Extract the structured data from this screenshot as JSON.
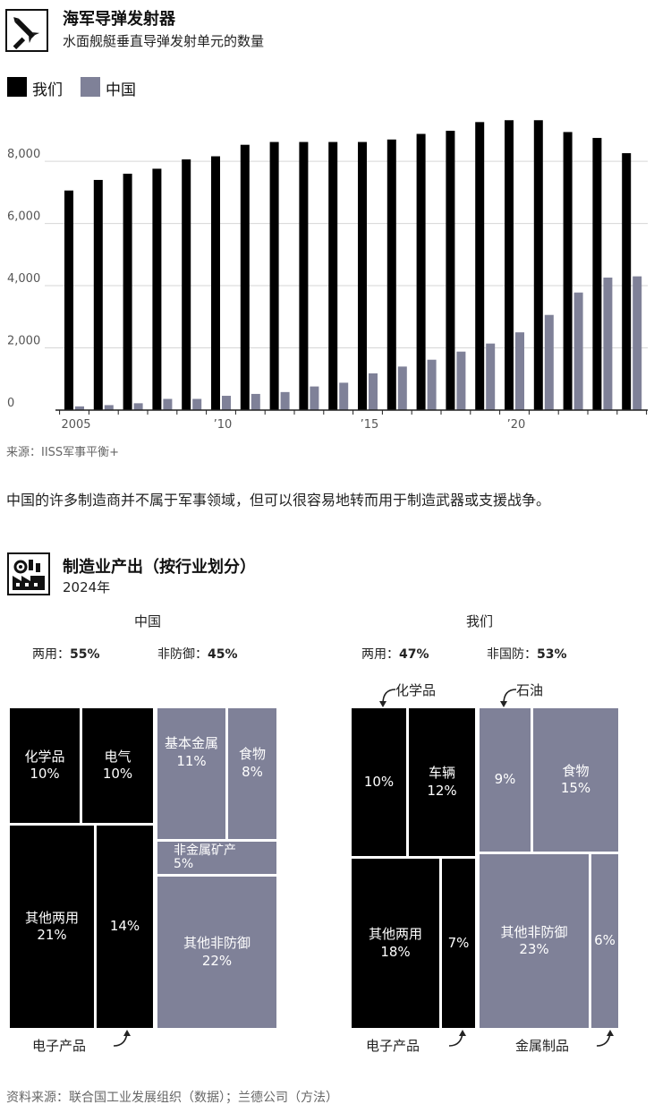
{
  "chart1": {
    "title": "海军导弹发射器",
    "subtitle": "水面舰艇垂直导弹发射单元的数量",
    "icon": "missile-launcher-icon",
    "legend": [
      {
        "label": "我们",
        "color": "#000000"
      },
      {
        "label": "中国",
        "color": "#7f8198"
      }
    ],
    "source": "来源：IISS军事平衡+"
  },
  "chart_data": [
    {
      "type": "bar",
      "title": "海军导弹发射器",
      "subtitle": "水面舰艇垂直导弹发射单元的数量",
      "x": [
        2005,
        2006,
        2007,
        2008,
        2009,
        2010,
        2011,
        2012,
        2013,
        2014,
        2015,
        2016,
        2017,
        2018,
        2019,
        2020,
        2021,
        2022,
        2023,
        2024
      ],
      "x_tick_labels": [
        "2005",
        "’10",
        "’15",
        "’20"
      ],
      "x_tick_values": [
        2005,
        2010,
        2015,
        2020
      ],
      "series": [
        {
          "name": "我们",
          "color": "#000000",
          "values": [
            7060,
            7400,
            7600,
            7760,
            8060,
            8160,
            8530,
            8620,
            8620,
            8620,
            8620,
            8700,
            8880,
            8980,
            9260,
            9320,
            9320,
            8940,
            8750,
            8260
          ]
        },
        {
          "name": "中国",
          "color": "#7f8198",
          "values": [
            120,
            160,
            220,
            360,
            360,
            460,
            520,
            580,
            760,
            880,
            1180,
            1400,
            1620,
            1880,
            2140,
            2500,
            3060,
            3780,
            4260,
            4300
          ]
        }
      ],
      "ylim": [
        0,
        9500
      ],
      "y_ticks": [
        "0",
        "2,000",
        "4,000",
        "6,000",
        "8,000"
      ],
      "y_tick_values": [
        0,
        2000,
        4000,
        6000,
        8000
      ],
      "grid": true,
      "legend": "top-left"
    },
    {
      "type": "treemap",
      "title": "制造业产出（按行业划分）",
      "subtitle": "2024年",
      "groups": [
        {
          "country": "中国",
          "shares": {
            "dual_label": "两用：",
            "dual_value": "55%",
            "nondef_label": "非防御：",
            "nondef_value": "45%"
          },
          "tiles": [
            {
              "label": "化学品",
              "value": 10,
              "kind": "dual"
            },
            {
              "label": "电气",
              "value": 10,
              "kind": "dual"
            },
            {
              "label": "其他两用",
              "value": 21,
              "kind": "dual"
            },
            {
              "label": "电子产品",
              "value": 14,
              "kind": "dual"
            },
            {
              "label": "基本金属",
              "value": 11,
              "kind": "nondef"
            },
            {
              "label": "食物",
              "value": 8,
              "kind": "nondef"
            },
            {
              "label": "非金属矿产",
              "value": 5,
              "kind": "nondef"
            },
            {
              "label": "其他非防御",
              "value": 22,
              "kind": "nondef"
            }
          ]
        },
        {
          "country": "我们",
          "shares": {
            "dual_label": "两用：",
            "dual_value": "47%",
            "nondef_label": "非国防：",
            "nondef_value": "53%"
          },
          "tiles": [
            {
              "label": "化学品",
              "value": 10,
              "kind": "dual"
            },
            {
              "label": "车辆",
              "value": 12,
              "kind": "dual"
            },
            {
              "label": "其他两用",
              "value": 18,
              "kind": "dual"
            },
            {
              "label": "电子产品",
              "value": 7,
              "kind": "dual"
            },
            {
              "label": "石油",
              "value": 9,
              "kind": "nondef"
            },
            {
              "label": "食物",
              "value": 15,
              "kind": "nondef"
            },
            {
              "label": "其他非防御",
              "value": 23,
              "kind": "nondef"
            },
            {
              "label": "金属制品",
              "value": 6,
              "kind": "nondef"
            }
          ]
        }
      ]
    }
  ],
  "body_text": "中国的许多制造商并不属于军事领域，但可以很容易地转而用于制造武器或支援战争。",
  "chart2": {
    "title": "制造业产出（按行业划分）",
    "subtitle": "2024年",
    "icon": "factory-gear-icon",
    "cn": {
      "header": "中国",
      "dual_label": "两用：",
      "dual_value": "55%",
      "nondef_label": "非防御：",
      "nondef_value": "45%",
      "t1_name": "化学品",
      "t1_pct": "10%",
      "t2_name": "电气",
      "t2_pct": "10%",
      "t3_name": "其他两用",
      "t3_pct": "21%",
      "t4_pct": "14%",
      "t5_name": "基本金属",
      "t5_pct": "11%",
      "t6_name": "食物",
      "t6_pct": "8%",
      "t7_name": "非金属矿产",
      "t7_pct": "5%",
      "t8_name": "其他非防御",
      "t8_pct": "22%",
      "callout_electronics": "电子产品"
    },
    "us": {
      "header": "我们",
      "dual_label": "两用：",
      "dual_value": "47%",
      "nondef_label": "非国防：",
      "nondef_value": "53%",
      "t1_pct": "10%",
      "t2_name": "车辆",
      "t2_pct": "12%",
      "t3_name": "其他两用",
      "t3_pct": "18%",
      "t4_pct": "7%",
      "t5_pct": "9%",
      "t6_name": "食物",
      "t6_pct": "15%",
      "t7_name": "其他非防御",
      "t7_pct": "23%",
      "t8_pct": "6%",
      "callout_chemicals": "化学品",
      "callout_oil": "石油",
      "callout_electronics": "电子产品",
      "callout_metal": "金属制品"
    },
    "source": "资料来源：联合国工业发展组织（数据）；兰德公司（方法）"
  }
}
